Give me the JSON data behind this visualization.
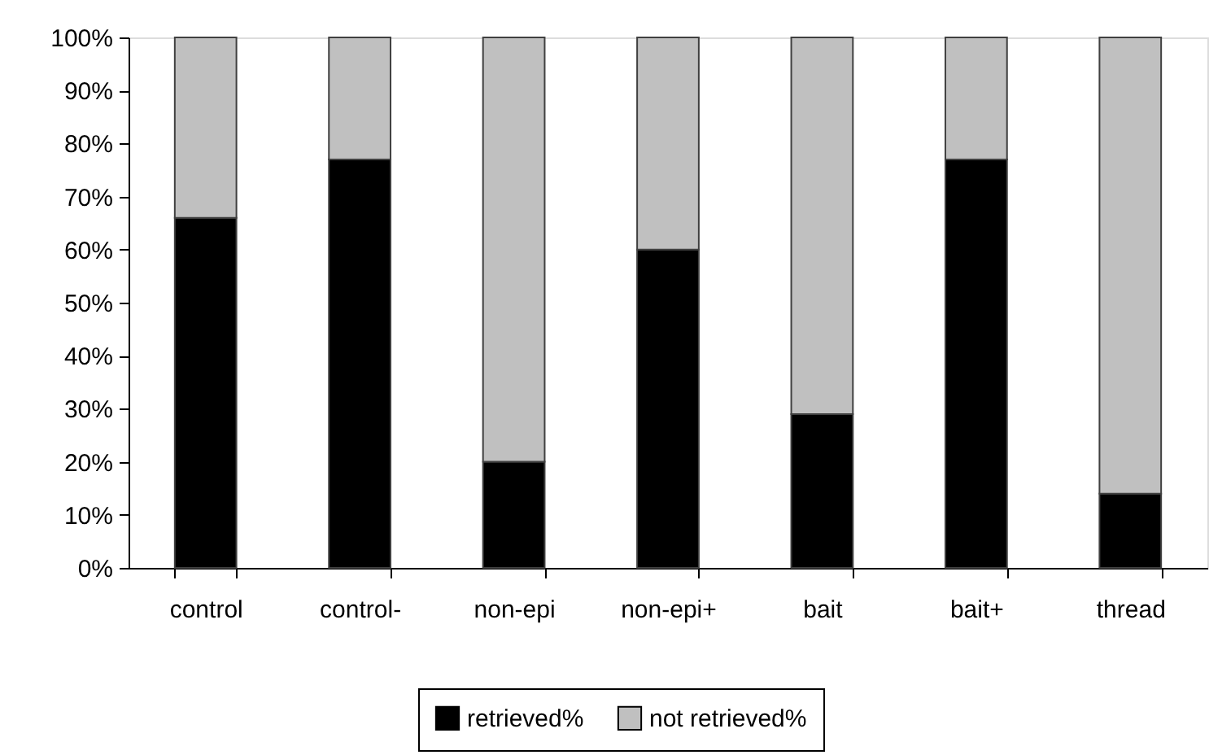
{
  "chart_data": {
    "type": "bar",
    "stacked": true,
    "categories": [
      "control",
      "control-",
      "non-epi",
      "non-epi+",
      "bait",
      "bait+",
      "thread"
    ],
    "series": [
      {
        "name": "retrieved%",
        "color": "#000000",
        "values": [
          66,
          77,
          20,
          60,
          29,
          77,
          14
        ]
      },
      {
        "name": "not retrieved%",
        "color": "#c0c0c0",
        "values": [
          34,
          23,
          80,
          40,
          71,
          23,
          86
        ]
      }
    ],
    "ylim": [
      0,
      100
    ],
    "yticks": [
      {
        "value": 0,
        "label": "0%"
      },
      {
        "value": 10,
        "label": "10%"
      },
      {
        "value": 20,
        "label": "20%"
      },
      {
        "value": 30,
        "label": "30%"
      },
      {
        "value": 40,
        "label": "40%"
      },
      {
        "value": 50,
        "label": "50%"
      },
      {
        "value": 60,
        "label": "60%"
      },
      {
        "value": 70,
        "label": "70%"
      },
      {
        "value": 80,
        "label": "80%"
      },
      {
        "value": 90,
        "label": "90%"
      },
      {
        "value": 100,
        "label": "100%"
      }
    ],
    "legend": "bottom",
    "grid": false
  }
}
